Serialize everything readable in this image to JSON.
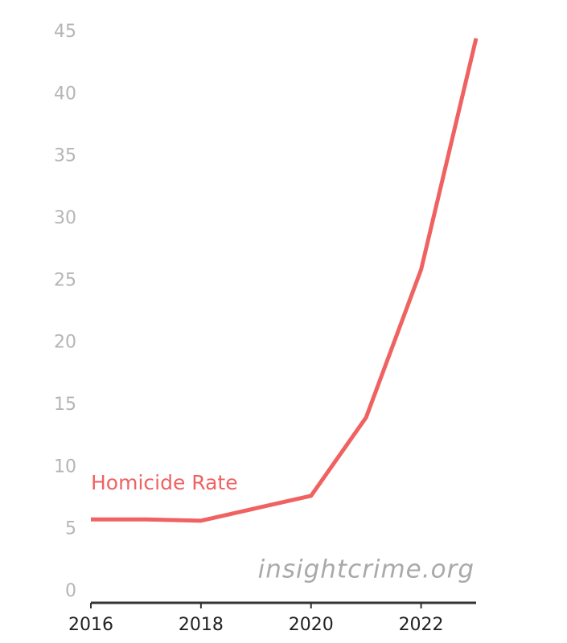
{
  "chart_data": {
    "type": "line",
    "x": [
      2016,
      2017,
      2018,
      2019,
      2020,
      2021,
      2022,
      2023
    ],
    "series": [
      {
        "name": "Homicide Rate",
        "color": "#f06262",
        "values": [
          5.8,
          5.8,
          5.7,
          6.7,
          7.7,
          14.0,
          25.9,
          44.5
        ]
      }
    ],
    "xlim": [
      2016,
      2023
    ],
    "xticks": [
      2016,
      2018,
      2020,
      2022
    ],
    "ylim": [
      0,
      45
    ],
    "yticks": [
      0,
      5,
      10,
      15,
      20,
      25,
      30,
      35,
      40,
      45
    ],
    "grid": false,
    "watermark": "insightcrime.org"
  }
}
